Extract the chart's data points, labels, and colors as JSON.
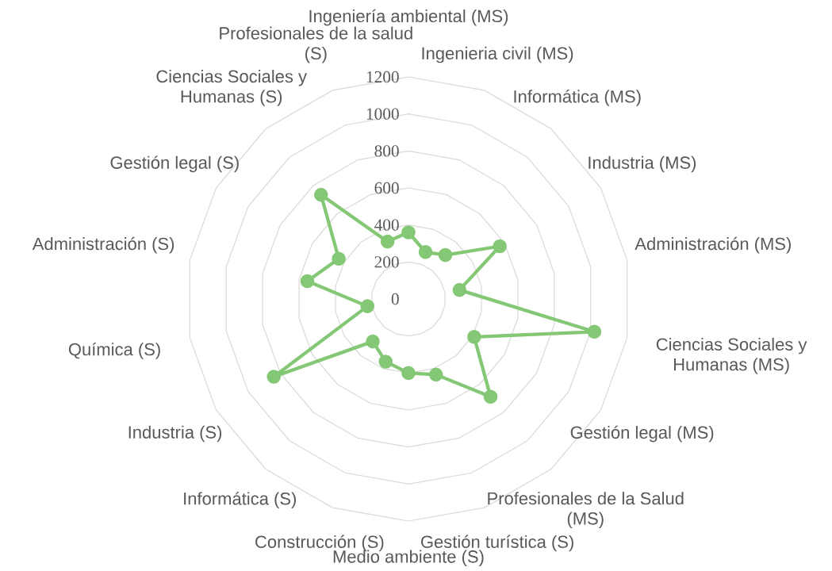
{
  "chart_data": {
    "type": "radar",
    "categories": [
      "Ingeniería ambiental (MS)",
      "Ingenieria civil (MS)",
      "Informática (MS)",
      "Industria (MS)",
      "Administración (MS)",
      "Ciencias Sociales y Humanas (MS)",
      "Gestión legal (MS)",
      "Profesionales de la Salud (MS)",
      "Gestión turística (S)",
      "Medio ambiente (S)",
      "Construcción (S)",
      "Informática (S)",
      "Industria (S)",
      "Química (S)",
      "Administración (S)",
      "Gestión legal (S)",
      "Ciencias Sociales y Humanas (S)",
      "Profesionales de la salud (S)"
    ],
    "series": [
      {
        "color": "#84c876",
        "values": [
          360,
          270,
          310,
          570,
          280,
          1020,
          410,
          690,
          435,
          400,
          360,
          300,
          840,
          225,
          555,
          435,
          735,
          330
        ]
      }
    ],
    "ylim": [
      0,
      1200
    ],
    "yticks": [
      {
        "value": 0,
        "label": "0"
      },
      200,
      400,
      600,
      800,
      1000,
      1200
    ],
    "grid": true,
    "marker": "circle",
    "line_style": "solid"
  }
}
